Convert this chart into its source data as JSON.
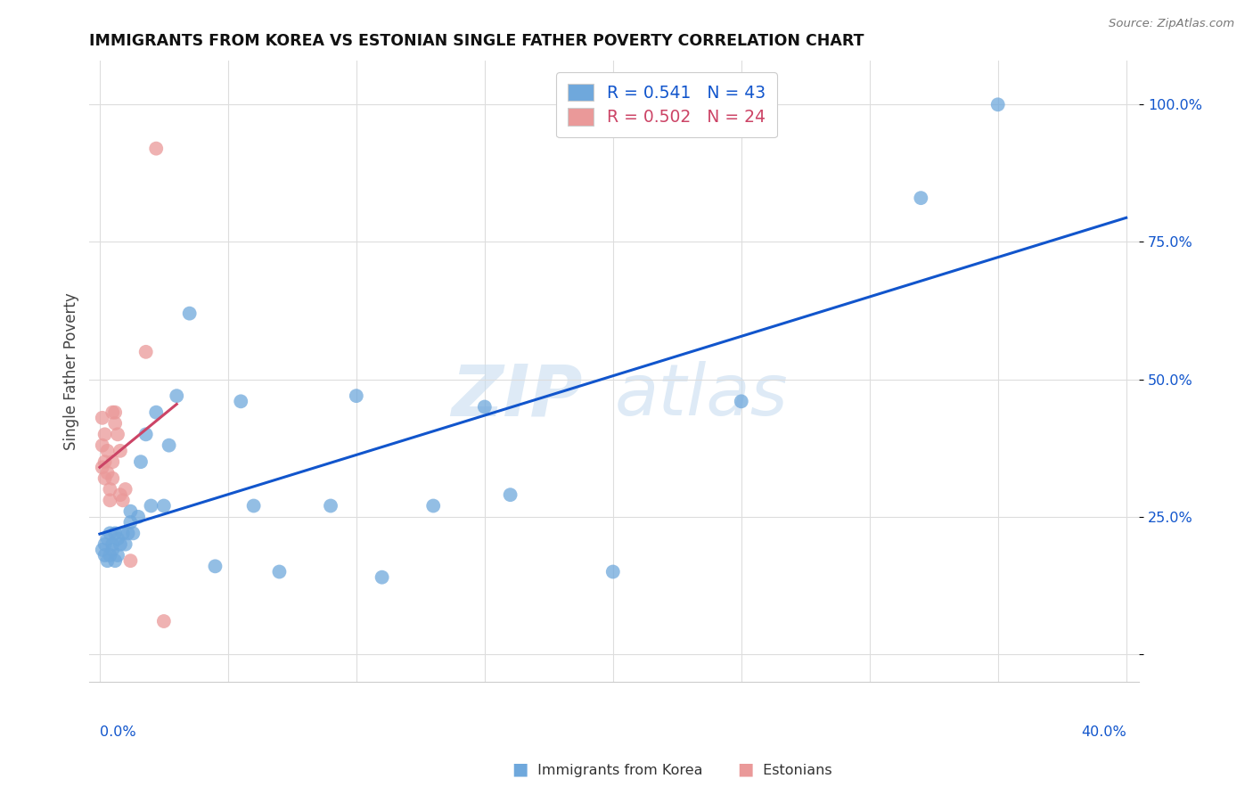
{
  "title": "IMMIGRANTS FROM KOREA VS ESTONIAN SINGLE FATHER POVERTY CORRELATION CHART",
  "source": "Source: ZipAtlas.com",
  "ylabel": "Single Father Poverty",
  "yticks": [
    0.0,
    0.25,
    0.5,
    0.75,
    1.0
  ],
  "ytick_labels": [
    "",
    "25.0%",
    "50.0%",
    "75.0%",
    "100.0%"
  ],
  "xmin": 0.0,
  "xmax": 0.4,
  "ymin": -0.05,
  "ymax": 1.08,
  "legend_korea_r": "0.541",
  "legend_korea_n": "43",
  "legend_estonian_r": "0.502",
  "legend_estonian_n": "24",
  "korea_color": "#6fa8dc",
  "estonian_color": "#ea9999",
  "korea_line_color": "#1155cc",
  "estonian_line_color": "#cc4466",
  "background_color": "#ffffff",
  "watermark_zip": "ZIP",
  "watermark_atlas": "atlas",
  "korea_x": [
    0.001,
    0.002,
    0.002,
    0.003,
    0.003,
    0.004,
    0.004,
    0.005,
    0.005,
    0.006,
    0.006,
    0.007,
    0.007,
    0.008,
    0.009,
    0.01,
    0.011,
    0.012,
    0.012,
    0.013,
    0.015,
    0.016,
    0.018,
    0.02,
    0.022,
    0.025,
    0.027,
    0.03,
    0.035,
    0.045,
    0.055,
    0.06,
    0.07,
    0.09,
    0.1,
    0.11,
    0.13,
    0.15,
    0.16,
    0.2,
    0.25,
    0.32,
    0.35
  ],
  "korea_y": [
    0.19,
    0.18,
    0.2,
    0.17,
    0.21,
    0.18,
    0.22,
    0.19,
    0.2,
    0.17,
    0.22,
    0.18,
    0.21,
    0.2,
    0.22,
    0.2,
    0.22,
    0.24,
    0.26,
    0.22,
    0.25,
    0.35,
    0.4,
    0.27,
    0.44,
    0.27,
    0.38,
    0.47,
    0.62,
    0.16,
    0.46,
    0.27,
    0.15,
    0.27,
    0.47,
    0.14,
    0.27,
    0.45,
    0.29,
    0.15,
    0.46,
    0.83,
    1.0
  ],
  "estonian_x": [
    0.001,
    0.001,
    0.001,
    0.002,
    0.002,
    0.002,
    0.003,
    0.003,
    0.004,
    0.004,
    0.005,
    0.005,
    0.005,
    0.006,
    0.006,
    0.007,
    0.008,
    0.008,
    0.009,
    0.01,
    0.012,
    0.018,
    0.022,
    0.025
  ],
  "estonian_y": [
    0.43,
    0.38,
    0.34,
    0.4,
    0.35,
    0.32,
    0.37,
    0.33,
    0.3,
    0.28,
    0.35,
    0.32,
    0.44,
    0.42,
    0.44,
    0.4,
    0.37,
    0.29,
    0.28,
    0.3,
    0.17,
    0.55,
    0.92,
    0.06
  ]
}
